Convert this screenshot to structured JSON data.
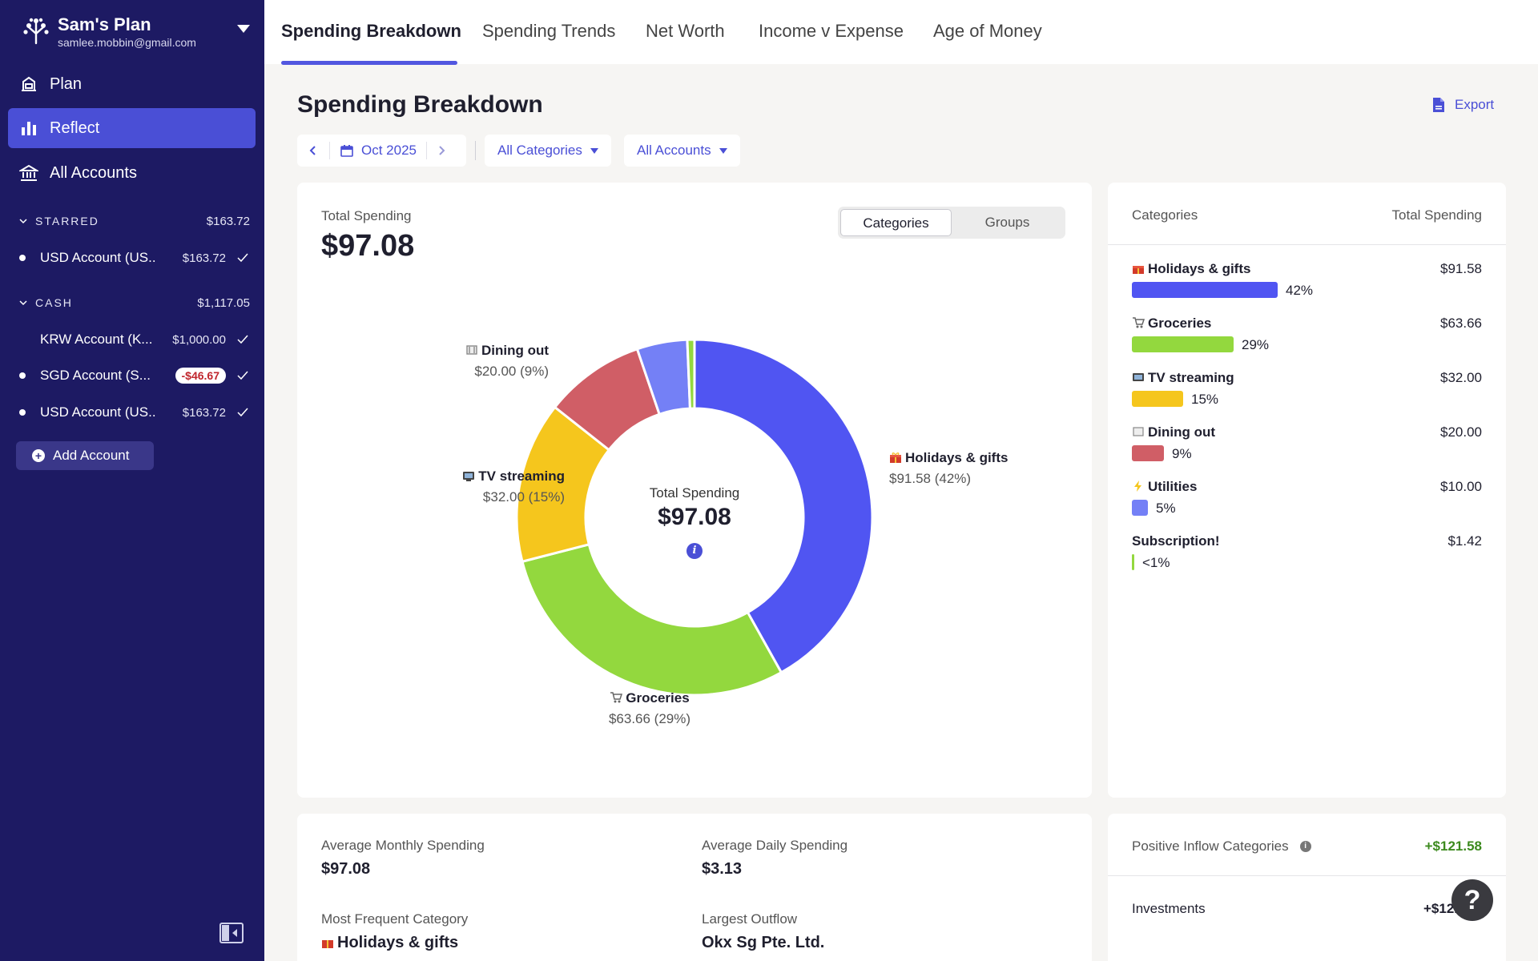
{
  "sidebar": {
    "plan_name": "Sam's Plan",
    "email": "samlee.mobbin@gmail.com",
    "nav": [
      {
        "label": "Plan",
        "icon": "plan-icon"
      },
      {
        "label": "Reflect",
        "icon": "bar-chart-icon",
        "active": true
      },
      {
        "label": "All Accounts",
        "icon": "bank-icon"
      }
    ],
    "groups": [
      {
        "label": "STARRED",
        "total": "$163.72",
        "accounts": [
          {
            "name": "USD Account (US...",
            "balance": "$163.72"
          }
        ]
      },
      {
        "label": "CASH",
        "total": "$1,117.05",
        "accounts": [
          {
            "name": "KRW Account (K...",
            "balance": "$1,000.00"
          },
          {
            "name": "SGD Account (S...",
            "balance": "-$46.67"
          },
          {
            "name": "USD Account (US...",
            "balance": "$163.72"
          }
        ]
      }
    ],
    "add_account": "Add Account"
  },
  "tabs": [
    "Spending Breakdown",
    "Spending Trends",
    "Net Worth",
    "Income v Expense",
    "Age of Money"
  ],
  "main": {
    "title": "Spending Breakdown",
    "export": "Export",
    "date": "Oct 2025",
    "filter_categories": "All Categories",
    "filter_accounts": "All Accounts",
    "total_label": "Total Spending",
    "total_value": "$97.08",
    "segment": [
      "Categories",
      "Groups"
    ]
  },
  "colors": {
    "holidays": "#5055f2",
    "groceries": "#93d83e",
    "tv": "#f5c61d",
    "dining": "#d05e66",
    "utilities": "#7480f6",
    "subscription": "#93d83e"
  },
  "chart_data": {
    "type": "pie",
    "center_label": "Total Spending",
    "center_value": "$97.08",
    "slices": [
      {
        "name": "Holidays & gifts",
        "value": 91.58,
        "percent": 42,
        "amount": "$91.58",
        "pct_label": "42%",
        "color": "#5055f2"
      },
      {
        "name": "Groceries",
        "value": 63.66,
        "percent": 29,
        "amount": "$63.66",
        "pct_label": "29%",
        "color": "#93d83e"
      },
      {
        "name": "TV streaming",
        "value": 32.0,
        "percent": 15,
        "amount": "$32.00",
        "pct_label": "15%",
        "color": "#f5c61d"
      },
      {
        "name": "Dining out",
        "value": 20.0,
        "percent": 9,
        "amount": "$20.00",
        "pct_label": "9%",
        "color": "#d05e66"
      },
      {
        "name": "Utilities",
        "value": 10.0,
        "percent": 5,
        "amount": "$10.00",
        "pct_label": "5%",
        "color": "#7480f6"
      },
      {
        "name": "Subscription!",
        "value": 1.42,
        "percent": 1,
        "amount": "$1.42",
        "pct_label": "<1%",
        "color": "#93d83e"
      }
    ],
    "outer_labels": [
      {
        "name": "Holidays & gifts",
        "detail": "$91.58 (42%)"
      },
      {
        "name": "Groceries",
        "detail": "$63.66 (29%)"
      },
      {
        "name": "TV streaming",
        "detail": "$32.00 (15%)"
      },
      {
        "name": "Dining out",
        "detail": "$20.00 (9%)"
      }
    ]
  },
  "list_card": {
    "col1": "Categories",
    "col2": "Total Spending"
  },
  "stats": {
    "avg_monthly_label": "Average Monthly Spending",
    "avg_monthly_value": "$97.08",
    "avg_daily_label": "Average Daily Spending",
    "avg_daily_value": "$3.13",
    "frequent_label": "Most Frequent Category",
    "frequent_value": "Holidays & gifts",
    "outflow_label": "Largest Outflow",
    "outflow_value": "Okx Sg Pte. Ltd."
  },
  "inflow": {
    "label": "Positive Inflow Categories",
    "total": "+$121.58",
    "row_name": "Investments",
    "row_value": "+$121.58"
  },
  "help": "?"
}
